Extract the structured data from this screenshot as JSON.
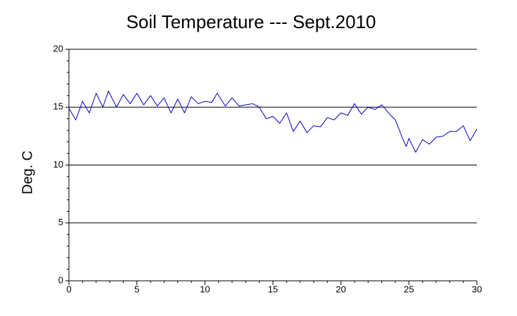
{
  "chart_data": {
    "type": "line",
    "title": "Soil Temperature --- Sept.2010",
    "y_label": "Deg. C",
    "x": [
      0,
      0.5,
      1,
      1.5,
      2,
      2.5,
      2.9,
      3.5,
      4,
      4.5,
      5,
      5.5,
      6,
      6.5,
      7,
      7.5,
      8,
      8.5,
      9,
      9.5,
      10,
      10.5,
      10.9,
      11.5,
      12,
      12.5,
      13,
      13.5,
      14,
      14.5,
      15,
      15.5,
      16,
      16.5,
      17,
      17.5,
      18,
      18.5,
      19,
      19.5,
      20,
      20.5,
      21,
      21.5,
      22,
      22.5,
      23,
      23.5,
      24,
      24.5,
      24.8,
      25,
      25.5,
      26,
      26.5,
      27,
      27.5,
      28,
      28.5,
      29,
      29.5,
      30
    ],
    "series": [
      {
        "name": "Soil Temperature",
        "color": "#0000c0",
        "values": [
          14.9,
          13.9,
          15.5,
          14.5,
          16.2,
          15.0,
          16.4,
          15.0,
          16.1,
          15.3,
          16.2,
          15.2,
          16.0,
          15.1,
          15.8,
          14.5,
          15.7,
          14.5,
          15.9,
          15.3,
          15.5,
          15.4,
          16.2,
          15.1,
          15.8,
          15.1,
          15.2,
          15.3,
          15.0,
          14.0,
          14.2,
          13.6,
          14.5,
          12.9,
          13.8,
          12.8,
          13.4,
          13.3,
          14.1,
          13.9,
          14.5,
          14.3,
          15.3,
          14.4,
          15.0,
          14.8,
          15.2,
          14.5,
          13.9,
          12.4,
          11.6,
          12.3,
          11.1,
          12.2,
          11.8,
          12.4,
          12.5,
          12.9,
          12.9,
          13.4,
          12.1,
          13.1
        ]
      }
    ],
    "xlim": [
      0,
      30
    ],
    "xticks": [
      0,
      5,
      10,
      15,
      20,
      25,
      30
    ],
    "ylim": [
      0,
      20
    ],
    "yticks": [
      0,
      5,
      10,
      15,
      20
    ],
    "grid": true
  }
}
